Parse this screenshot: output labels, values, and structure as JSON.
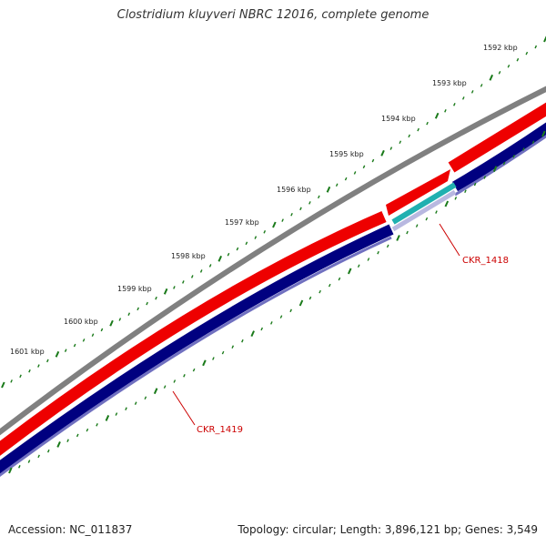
{
  "title": "Clostridium kluyveri NBRC 12016, complete genome",
  "footer": {
    "accession": "Accession: NC_011837",
    "summary": "Topology: circular; Length: 3,896,121 bp; Genes: 3,549"
  },
  "ruler": {
    "labels": [
      "1592 kbp",
      "1593 kbp",
      "1594 kbp",
      "1595 kbp",
      "1596 kbp",
      "1597 kbp",
      "1598 kbp",
      "1599 kbp",
      "1600 kbp",
      "1601 kbp"
    ],
    "tick_color": "#1a7a1a"
  },
  "genes": [
    {
      "name": "CKR_1418",
      "strand": "minus",
      "color": "#cc0000"
    },
    {
      "name": "CKR_1419",
      "strand": "minus",
      "color": "#cc0000"
    }
  ],
  "colors": {
    "backbone": "#808080",
    "forward_strand": "#ee0000",
    "reverse_strand": "#000080",
    "rna_feature": "#20b0b0",
    "outer_band": "#7070c0"
  }
}
